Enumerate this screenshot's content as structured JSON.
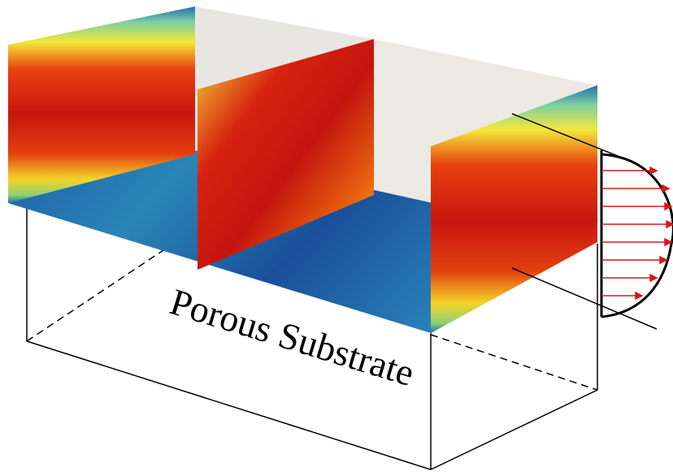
{
  "label": "Porous Substrate"
}
